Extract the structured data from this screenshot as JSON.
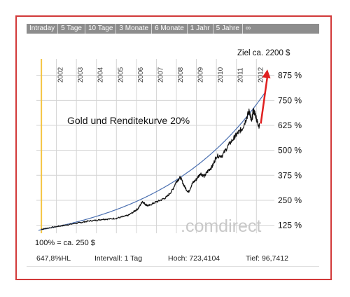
{
  "tabs": [
    "Intraday",
    "5 Tage",
    "10 Tage",
    "3 Monate",
    "6 Monate",
    "1 Jahr",
    "5 Jahre",
    "∞"
  ],
  "colors": {
    "frame": "#d23a3a",
    "tabbar": "#8d8d8d",
    "price_line": "#111111",
    "curve": "#4a6fb0",
    "arrow": "#e02020",
    "marker": "#f5c542",
    "watermark": "#c8c8c8"
  },
  "chart_data": {
    "type": "line",
    "title": "Gold und Renditekurve 20%",
    "x_ticks": [
      "2002",
      "2003",
      "2004",
      "2005",
      "2006",
      "2007",
      "2008",
      "2009",
      "2010",
      "2011",
      "2012"
    ],
    "y_ticks": [
      "125 %",
      "250 %",
      "375 %",
      "500 %",
      "625 %",
      "750 %",
      "875 %"
    ],
    "y_tick_values": [
      125,
      250,
      375,
      500,
      625,
      750,
      875
    ],
    "xlim": [
      2001.0,
      2012.9
    ],
    "ylim": [
      85,
      930
    ],
    "grid": true,
    "series": [
      {
        "kind": "price",
        "x": [
          2001.25,
          2001.5,
          2002.0,
          2002.3,
          2002.6,
          2003.0,
          2003.3,
          2003.6,
          2004.0,
          2004.3,
          2004.6,
          2005.0,
          2005.3,
          2005.6,
          2005.9,
          2006.1,
          2006.3,
          2006.45,
          2006.6,
          2006.9,
          2007.2,
          2007.5,
          2007.8,
          2008.0,
          2008.2,
          2008.4,
          2008.6,
          2008.8,
          2009.0,
          2009.2,
          2009.4,
          2009.6,
          2009.8,
          2010.0,
          2010.3,
          2010.6,
          2010.9,
          2011.1,
          2011.3,
          2011.5,
          2011.65,
          2011.75,
          2011.85,
          2011.95,
          2012.05,
          2012.15
        ],
        "values": [
          105,
          110,
          118,
          123,
          128,
          135,
          140,
          146,
          150,
          155,
          156,
          160,
          167,
          175,
          195,
          210,
          245,
          230,
          222,
          238,
          250,
          265,
          300,
          345,
          365,
          320,
          290,
          335,
          355,
          385,
          370,
          400,
          420,
          470,
          475,
          525,
          565,
          590,
          610,
          660,
          700,
          640,
          700,
          680,
          640,
          620
        ]
      },
      {
        "kind": "curve",
        "rate": 0.2,
        "x_start": 2001.1,
        "x_end": 2012.45,
        "y_start": 100
      }
    ],
    "annotations": {
      "target": "Ziel ca. 2200 $",
      "baseline": "100% = ca. 250 $",
      "watermark": ".comdirect"
    }
  },
  "stats": {
    "hl": "647,8%HL",
    "interval": "Intervall: 1 Tag",
    "high": "Hoch: 723,4104",
    "low": "Tief: 96,7412"
  }
}
